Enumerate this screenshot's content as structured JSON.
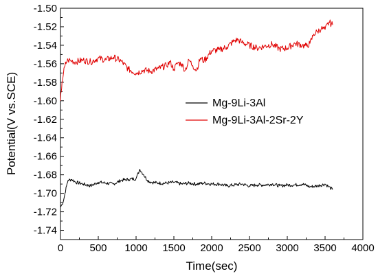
{
  "chart_data": {
    "type": "line",
    "title": "",
    "xlabel": "Time(sec)",
    "ylabel": "Potential(V vs.SCE)",
    "xlim": [
      0,
      4000
    ],
    "ylim": [
      -1.75,
      -1.5
    ],
    "x_ticks": [
      "0",
      "500",
      "1000",
      "1500",
      "2000",
      "2500",
      "3000",
      "3500",
      "4000"
    ],
    "y_ticks": [
      "-1.50",
      "-1.52",
      "-1.54",
      "-1.56",
      "-1.58",
      "-1.60",
      "-1.62",
      "-1.64",
      "-1.66",
      "-1.68",
      "-1.70",
      "-1.72",
      "-1.74"
    ],
    "grid": false,
    "legend_position": "center-right",
    "series": [
      {
        "name": "Mg-9Li-3Al",
        "color": "#000000",
        "x": [
          0,
          20,
          40,
          60,
          80,
          100,
          150,
          200,
          300,
          400,
          500,
          600,
          700,
          800,
          900,
          1000,
          1050,
          1100,
          1150,
          1200,
          1300,
          1400,
          1500,
          1600,
          1700,
          1800,
          1900,
          2000,
          2100,
          2200,
          2300,
          2400,
          2500,
          2600,
          2700,
          2800,
          2900,
          3000,
          3100,
          3200,
          3300,
          3400,
          3500,
          3550,
          3600
        ],
        "y": [
          -1.715,
          -1.712,
          -1.708,
          -1.7,
          -1.692,
          -1.686,
          -1.685,
          -1.688,
          -1.69,
          -1.692,
          -1.688,
          -1.689,
          -1.69,
          -1.686,
          -1.685,
          -1.684,
          -1.674,
          -1.68,
          -1.686,
          -1.688,
          -1.689,
          -1.689,
          -1.688,
          -1.69,
          -1.689,
          -1.69,
          -1.689,
          -1.69,
          -1.69,
          -1.692,
          -1.691,
          -1.69,
          -1.692,
          -1.691,
          -1.691,
          -1.69,
          -1.692,
          -1.691,
          -1.691,
          -1.69,
          -1.693,
          -1.692,
          -1.69,
          -1.693,
          -1.696
        ]
      },
      {
        "name": "Mg-9Li-3Al-2Sr-2Y",
        "color": "#e00000",
        "x": [
          0,
          10,
          20,
          40,
          60,
          80,
          100,
          150,
          200,
          300,
          400,
          500,
          600,
          700,
          800,
          900,
          1000,
          1100,
          1200,
          1300,
          1400,
          1450,
          1500,
          1550,
          1600,
          1650,
          1700,
          1750,
          1800,
          1850,
          1900,
          2000,
          2100,
          2200,
          2300,
          2350,
          2400,
          2500,
          2600,
          2700,
          2800,
          2900,
          3000,
          3100,
          3200,
          3250,
          3300,
          3350,
          3400,
          3450,
          3500,
          3550,
          3600
        ],
        "y": [
          -1.6,
          -1.59,
          -1.58,
          -1.57,
          -1.562,
          -1.558,
          -1.556,
          -1.557,
          -1.558,
          -1.556,
          -1.558,
          -1.554,
          -1.556,
          -1.553,
          -1.557,
          -1.566,
          -1.57,
          -1.567,
          -1.568,
          -1.565,
          -1.562,
          -1.558,
          -1.566,
          -1.559,
          -1.56,
          -1.567,
          -1.556,
          -1.562,
          -1.567,
          -1.554,
          -1.557,
          -1.546,
          -1.545,
          -1.542,
          -1.535,
          -1.534,
          -1.537,
          -1.54,
          -1.543,
          -1.541,
          -1.539,
          -1.544,
          -1.543,
          -1.538,
          -1.54,
          -1.541,
          -1.538,
          -1.528,
          -1.525,
          -1.522,
          -1.523,
          -1.515,
          -1.518
        ]
      }
    ]
  }
}
